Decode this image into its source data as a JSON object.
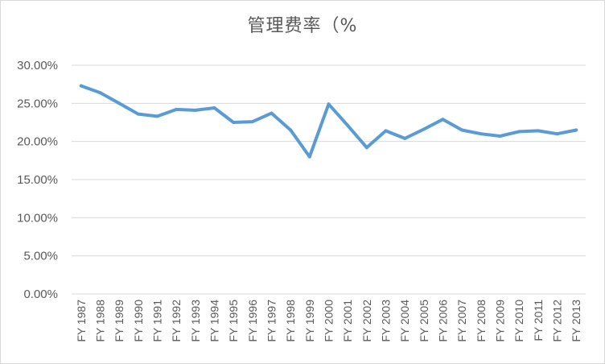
{
  "chart_data": {
    "type": "line",
    "title": "管理费率（%",
    "categories": [
      "FY 1987",
      "FY 1988",
      "FY 1989",
      "FY 1990",
      "FY 1991",
      "FY 1992",
      "FY 1993",
      "FY 1994",
      "FY 1995",
      "FY 1996",
      "FY 1997",
      "FY 1998",
      "FY 1999",
      "FY 2000",
      "FY 2001",
      "FY 2002",
      "FY 2003",
      "FY 2004",
      "FY 2005",
      "FY 2006",
      "FY 2007",
      "FY 2008",
      "FY 2009",
      "FY 2010",
      "FY 2011",
      "FY 2012",
      "FY 2013"
    ],
    "values": [
      27.3,
      26.4,
      25.0,
      23.6,
      23.3,
      24.2,
      24.1,
      24.4,
      22.5,
      22.6,
      23.7,
      21.5,
      18.0,
      24.9,
      22.1,
      19.2,
      21.4,
      20.4,
      21.6,
      22.9,
      21.5,
      21.0,
      20.7,
      21.3,
      21.4,
      21.0,
      21.5
    ],
    "ylim": [
      0,
      30
    ],
    "yticks": [
      0,
      5,
      10,
      15,
      20,
      25,
      30
    ],
    "ytick_labels": [
      "0.00%",
      "5.00%",
      "10.00%",
      "15.00%",
      "20.00%",
      "25.00%",
      "30.00%"
    ],
    "xlabel": "",
    "ylabel": "",
    "grid": true,
    "legend": "none",
    "line_color": "#5b9bd5",
    "grid_color": "#d9d9d9"
  }
}
